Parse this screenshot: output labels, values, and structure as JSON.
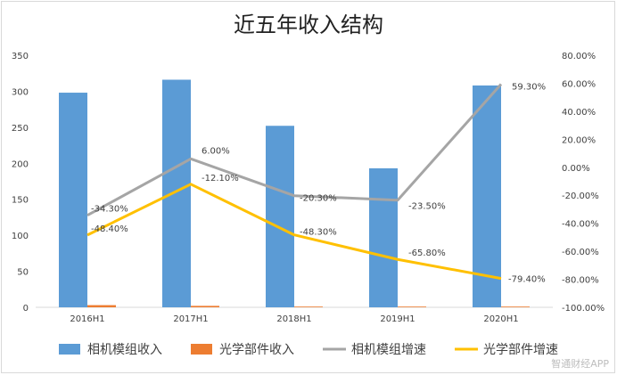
{
  "chart_data": {
    "type": "bar",
    "title": "近五年收入结构",
    "categories": [
      "2016H1",
      "2017H1",
      "2018H1",
      "2019H1",
      "2020H1"
    ],
    "y_left": {
      "min": 0,
      "max": 350,
      "step": 50,
      "ticks": [
        "0",
        "50",
        "100",
        "150",
        "200",
        "250",
        "300",
        "350"
      ]
    },
    "y_right": {
      "min": -100,
      "max": 80,
      "step": 20,
      "ticks": [
        "-100.00%",
        "-80.00%",
        "-60.00%",
        "-40.00%",
        "-20.00%",
        "0.00%",
        "20.00%",
        "40.00%",
        "60.00%",
        "80.00%"
      ]
    },
    "series": [
      {
        "name": "相机模组收入",
        "type": "bar",
        "axis": "left",
        "color": "#5b9bd5",
        "values": [
          298,
          316,
          252,
          193,
          308
        ]
      },
      {
        "name": "光学部件收入",
        "type": "bar",
        "axis": "left",
        "color": "#ed7d31",
        "values": [
          3,
          2,
          1,
          1,
          1
        ]
      },
      {
        "name": "相机模组增速",
        "type": "line",
        "axis": "right",
        "color": "#a5a5a5",
        "values": [
          -34.3,
          6.0,
          -20.3,
          -23.5,
          59.3
        ],
        "labels": [
          "-34.30%",
          "6.00%",
          "-20.30%",
          "-23.50%",
          "59.30%"
        ]
      },
      {
        "name": "光学部件增速",
        "type": "line",
        "axis": "right",
        "color": "#ffc000",
        "values": [
          -48.4,
          -12.1,
          -48.3,
          -65.8,
          -79.4
        ],
        "labels": [
          "-48.40%",
          "-12.10%",
          "-48.30%",
          "-65.80%",
          "-79.40%"
        ]
      }
    ],
    "legend_position": "bottom",
    "grid": false
  },
  "watermark": "智通财经APP"
}
